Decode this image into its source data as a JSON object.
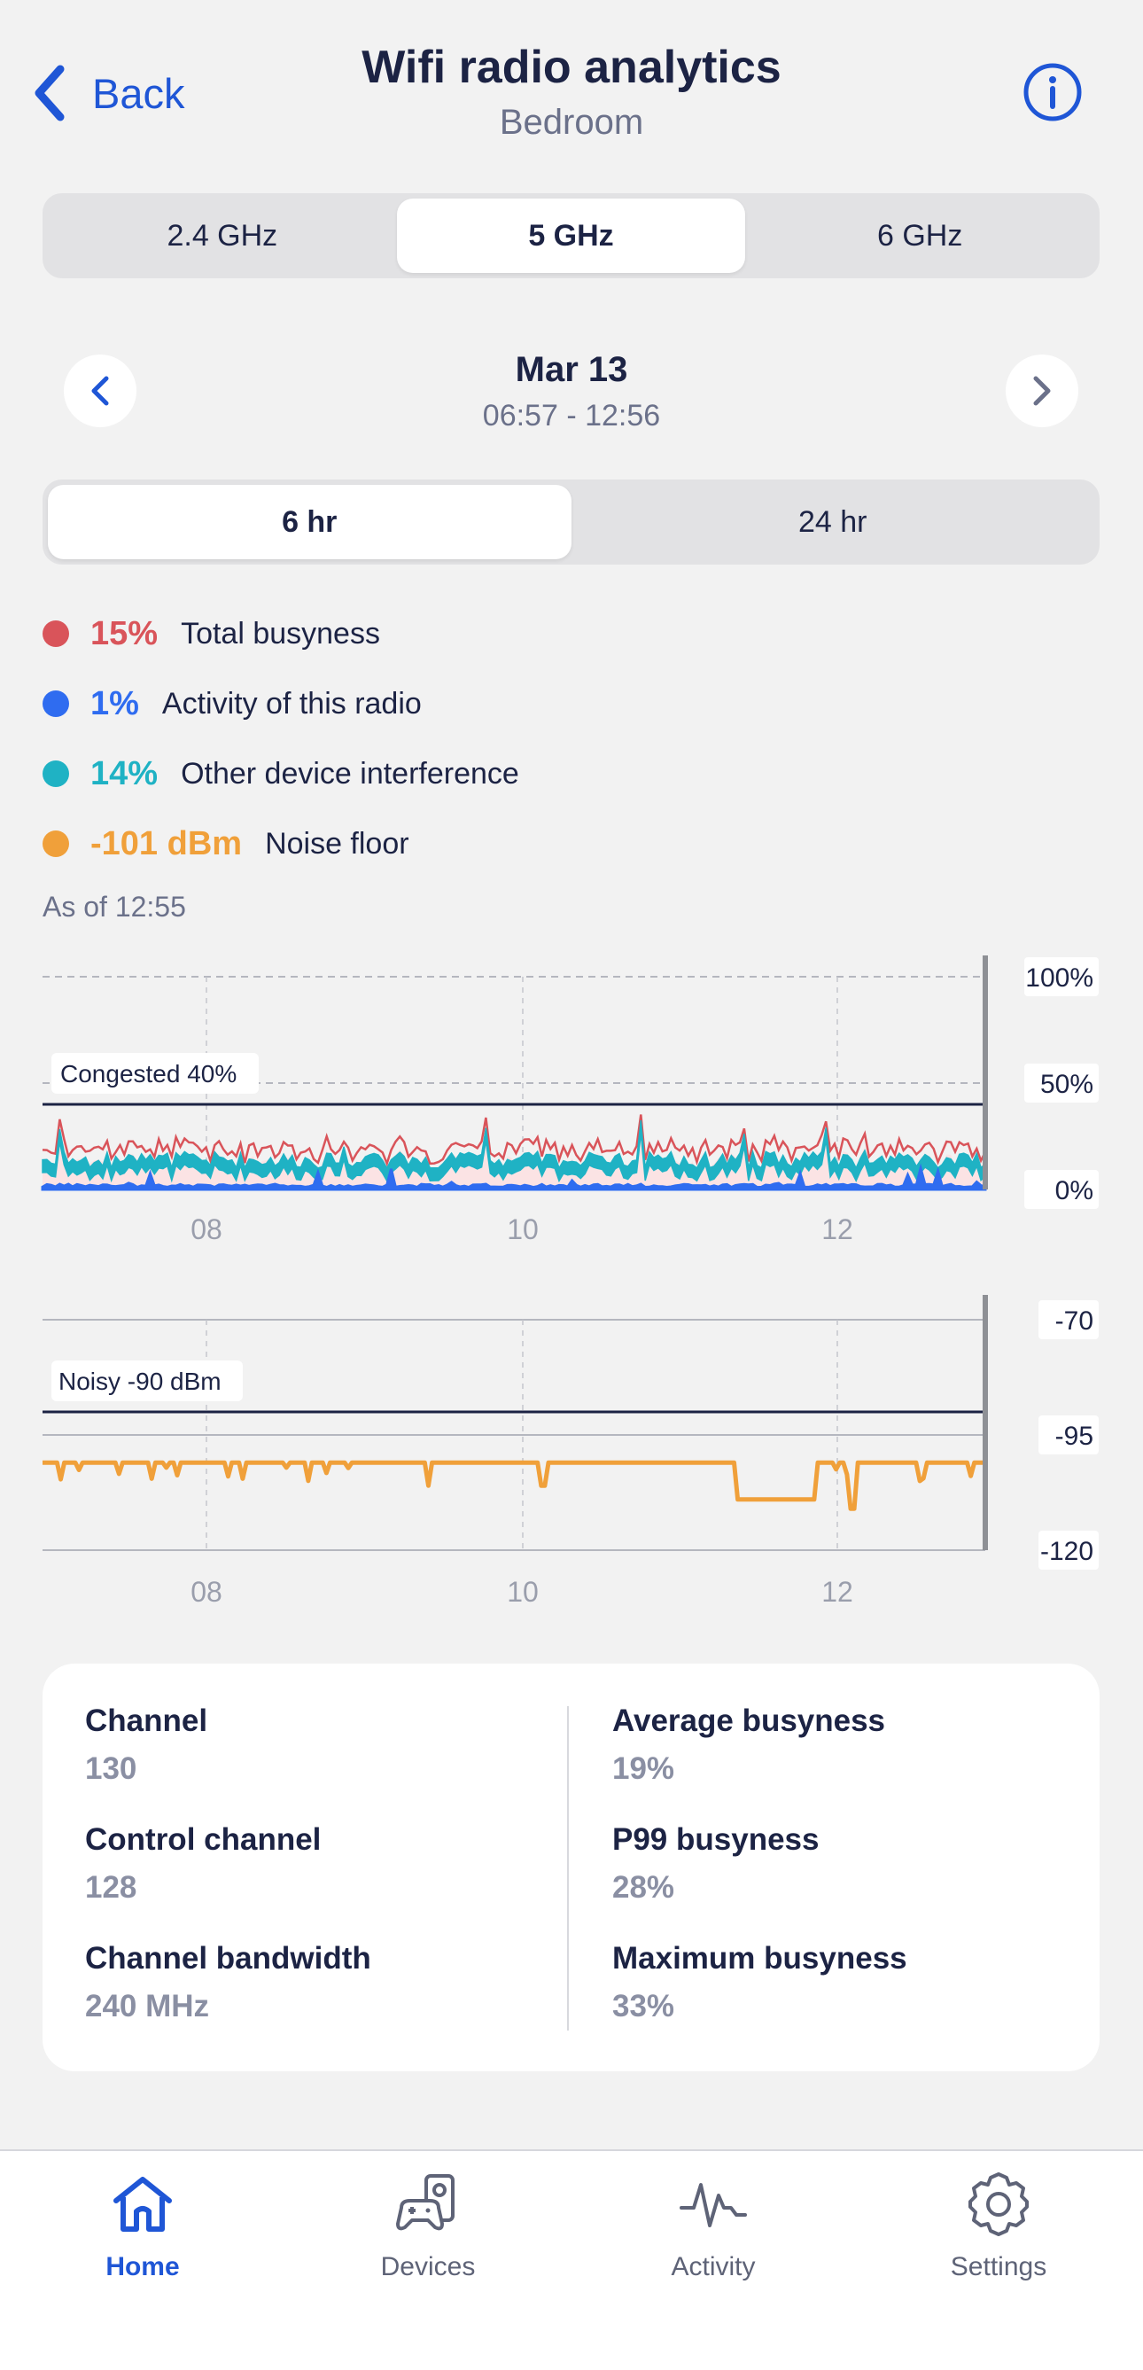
{
  "header": {
    "back_label": "Back",
    "title": "Wifi radio analytics",
    "subtitle": "Bedroom",
    "info_icon": "info-icon"
  },
  "bands": {
    "options": [
      "2.4 GHz",
      "5 GHz",
      "6 GHz"
    ],
    "selected": "5 GHz"
  },
  "date_nav": {
    "date": "Mar 13",
    "time_range": "06:57 - 12:56"
  },
  "ranges": {
    "options": [
      "6 hr",
      "24 hr"
    ],
    "selected": "6 hr"
  },
  "legend": [
    {
      "value": "15%",
      "label": "Total busyness",
      "color": "#d9545a"
    },
    {
      "value": "1%",
      "label": "Activity of this radio",
      "color": "#2f6cf0"
    },
    {
      "value": "14%",
      "label": "Other device interference",
      "color": "#1fb2c4"
    },
    {
      "value": "-101 dBm",
      "label": "Noise floor",
      "color": "#f0a03a"
    }
  ],
  "as_of": "As of 12:55",
  "chart_data": [
    {
      "type": "area",
      "y_tick_labels": [
        "100%",
        "50%",
        "0%"
      ],
      "ylim": [
        0,
        100
      ],
      "x_tick_labels": [
        "08",
        "10",
        "12"
      ],
      "threshold": {
        "label": "Congested 40%",
        "value": 40
      },
      "series": [
        {
          "name": "Total busyness",
          "color": "#d9545a",
          "typical": 18
        },
        {
          "name": "Activity of this radio",
          "color": "#2f6cf0",
          "typical": 1
        },
        {
          "name": "Other device interference",
          "color": "#1fb2c4",
          "typical": 14
        }
      ],
      "grid": true
    },
    {
      "type": "line",
      "y_tick_labels": [
        "-70",
        "-95",
        "-120"
      ],
      "ylim": [
        -120,
        -70
      ],
      "x_tick_labels": [
        "08",
        "10",
        "12"
      ],
      "threshold": {
        "label": "Noisy -90 dBm",
        "value": -90
      },
      "series": [
        {
          "name": "Noise floor",
          "color": "#f0a03a",
          "typical": -101,
          "dip_value": -109
        }
      ],
      "grid": true
    }
  ],
  "stats": {
    "left": [
      {
        "label": "Channel",
        "value": "130"
      },
      {
        "label": "Control channel",
        "value": "128"
      },
      {
        "label": "Channel bandwidth",
        "value": "240 MHz"
      }
    ],
    "right": [
      {
        "label": "Average busyness",
        "value": "19%"
      },
      {
        "label": "P99 busyness",
        "value": "28%"
      },
      {
        "label": "Maximum busyness",
        "value": "33%"
      }
    ]
  },
  "tabs": [
    {
      "label": "Home",
      "icon": "home-icon",
      "active": true
    },
    {
      "label": "Devices",
      "icon": "devices-icon",
      "active": false
    },
    {
      "label": "Activity",
      "icon": "activity-icon",
      "active": false
    },
    {
      "label": "Settings",
      "icon": "gear-icon",
      "active": false
    }
  ],
  "colors": {
    "accent": "#1f56d6",
    "background": "#f2f2f2"
  }
}
